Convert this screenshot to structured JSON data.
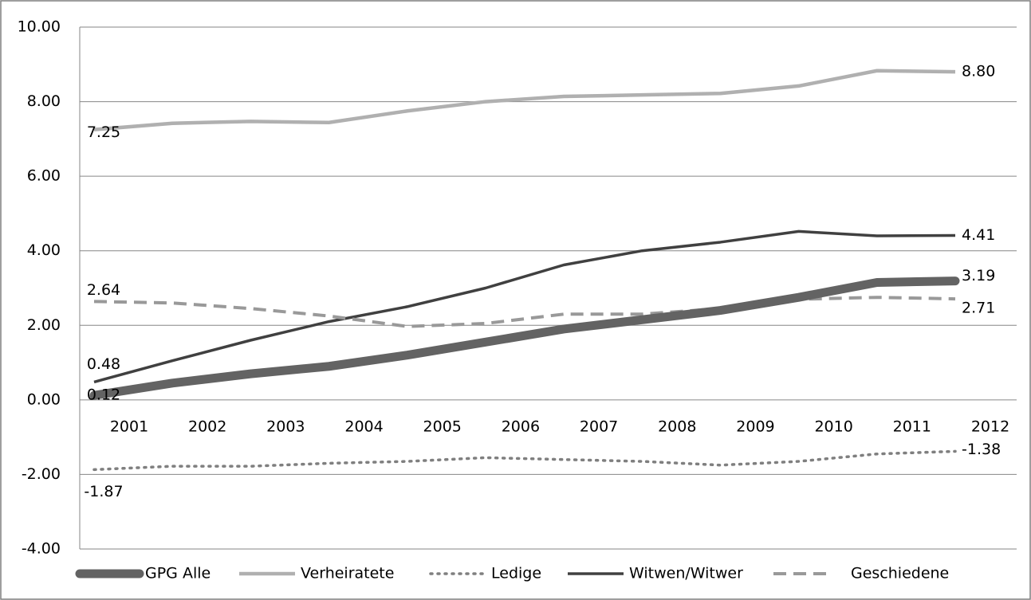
{
  "chart_data": {
    "type": "line",
    "categories": [
      "2001",
      "2002",
      "2003",
      "2004",
      "2005",
      "2006",
      "2007",
      "2008",
      "2009",
      "2010",
      "2011",
      "2012"
    ],
    "series": [
      {
        "name": "GPG Alle",
        "color": "#636363",
        "values": [
          0.12,
          0.45,
          0.7,
          0.9,
          1.2,
          1.55,
          1.9,
          2.15,
          2.4,
          2.75,
          3.15,
          3.19
        ],
        "value_labels": [
          "0.12",
          null,
          null,
          null,
          null,
          null,
          null,
          null,
          null,
          null,
          null,
          "3.19"
        ]
      },
      {
        "name": "Verheiratete",
        "color": "#b0b0b0",
        "values": [
          7.25,
          7.42,
          7.47,
          7.44,
          7.75,
          8.0,
          8.14,
          8.18,
          8.22,
          8.42,
          8.83,
          8.8
        ],
        "value_labels": [
          "7.25",
          null,
          null,
          null,
          null,
          null,
          null,
          null,
          null,
          null,
          null,
          "8.80"
        ]
      },
      {
        "name": "Ledige",
        "color": "#7f7f7f",
        "values": [
          -1.87,
          -1.78,
          -1.78,
          -1.7,
          -1.65,
          -1.55,
          -1.6,
          -1.65,
          -1.75,
          -1.65,
          -1.45,
          -1.38
        ],
        "value_labels": [
          "-1.87",
          null,
          null,
          null,
          null,
          null,
          null,
          null,
          null,
          null,
          null,
          "-1.38"
        ]
      },
      {
        "name": "Witwen/Witwer",
        "color": "#404040",
        "values": [
          0.48,
          1.05,
          1.6,
          2.1,
          2.5,
          3.0,
          3.62,
          4.0,
          4.23,
          4.52,
          4.4,
          4.41
        ],
        "value_labels": [
          "0.48",
          null,
          null,
          null,
          null,
          null,
          null,
          null,
          null,
          null,
          null,
          "4.41"
        ]
      },
      {
        "name": "Geschiedene",
        "color": "#999999",
        "values": [
          2.64,
          2.6,
          2.45,
          2.25,
          1.97,
          2.05,
          2.3,
          2.3,
          2.45,
          2.7,
          2.75,
          2.71
        ],
        "value_labels": [
          "2.64",
          null,
          null,
          null,
          null,
          null,
          null,
          null,
          null,
          null,
          null,
          "2.71"
        ]
      }
    ],
    "ylim": [
      -4,
      10
    ],
    "yticks": [
      {
        "value": -4,
        "label": "-4.00"
      },
      {
        "value": -2,
        "label": "-2.00"
      },
      {
        "value": 0,
        "label": "0.00"
      },
      {
        "value": 2,
        "label": "2.00"
      },
      {
        "value": 4,
        "label": "4.00"
      },
      {
        "value": 6,
        "label": "6.00"
      },
      {
        "value": 8,
        "label": "8.00"
      },
      {
        "value": 10,
        "label": "10.00"
      }
    ],
    "grid": true,
    "legend": "bottom"
  }
}
